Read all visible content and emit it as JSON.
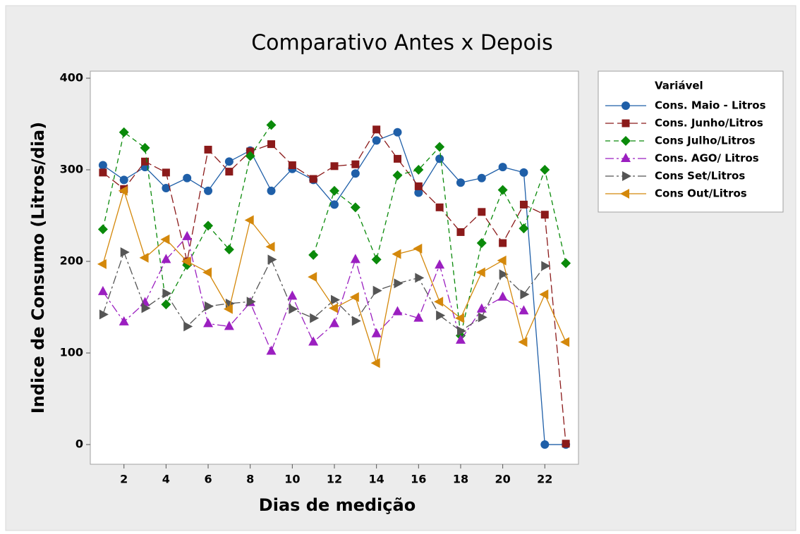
{
  "chart_data": {
    "type": "line",
    "title": "Comparativo Antes x Depois",
    "x_label": "Dias de medição",
    "y_label": "Indice de Consumo (Litros/dia)",
    "legend_title": "Variável",
    "legend_position": "right",
    "x": [
      1,
      2,
      3,
      4,
      5,
      6,
      7,
      8,
      9,
      10,
      11,
      12,
      13,
      14,
      15,
      16,
      17,
      18,
      19,
      20,
      21,
      22,
      23
    ],
    "xlim": [
      0.4,
      23.6
    ],
    "xticks": [
      2,
      4,
      6,
      8,
      10,
      12,
      14,
      16,
      18,
      20,
      22
    ],
    "ylim": [
      -21.5,
      407.7
    ],
    "yticks": [
      0,
      100,
      200,
      300,
      400
    ],
    "series": [
      {
        "name": "Cons. Maio - Litros",
        "color": "#1f5fa8",
        "marker": "circle",
        "line_style": "solid",
        "values": [
          305,
          289,
          303,
          280,
          291,
          277,
          309,
          321,
          277,
          301,
          289,
          262,
          296,
          332,
          341,
          275,
          312,
          286,
          291,
          303,
          297,
          0,
          0
        ]
      },
      {
        "name": "Cons. Junho/Litros",
        "color": "#8b1a1a",
        "marker": "square",
        "line_style": "longdash",
        "values": [
          297,
          279,
          309,
          297,
          200,
          322,
          298,
          320,
          328,
          305,
          290,
          304,
          306,
          344,
          312,
          282,
          259,
          232,
          254,
          220,
          262,
          251,
          1
        ]
      },
      {
        "name": "Cons Julho/Litros",
        "color": "#0a8a0a",
        "marker": "diamond",
        "line_style": "dashed",
        "values": [
          235,
          341,
          324,
          153,
          196,
          239,
          213,
          315,
          349,
          null,
          207,
          277,
          259,
          202,
          294,
          300,
          325,
          119,
          220,
          278,
          236,
          300,
          198
        ]
      },
      {
        "name": "Cons. AGO/ Litros",
        "color": "#9b1fc0",
        "marker": "triangle-up",
        "line_style": "dashdot",
        "values": [
          167,
          134,
          155,
          202,
          227,
          132,
          129,
          155,
          102,
          162,
          112,
          132,
          202,
          121,
          145,
          138,
          196,
          114,
          148,
          161,
          146,
          null,
          null
        ]
      },
      {
        "name": "Cons Set/Litros",
        "color": "#555555",
        "marker": "triangle-right",
        "line_style": "dashdot",
        "values": [
          142,
          210,
          149,
          165,
          129,
          151,
          154,
          156,
          202,
          148,
          138,
          158,
          135,
          168,
          176,
          182,
          141,
          124,
          139,
          186,
          164,
          195,
          null
        ]
      },
      {
        "name": "Cons Out/Litros",
        "color": "#d4880b",
        "marker": "triangle-left",
        "line_style": "solid",
        "values": [
          197,
          277,
          204,
          224,
          200,
          188,
          148,
          245,
          216,
          null,
          183,
          149,
          161,
          89,
          208,
          214,
          156,
          138,
          188,
          201,
          112,
          164,
          112
        ]
      }
    ]
  }
}
